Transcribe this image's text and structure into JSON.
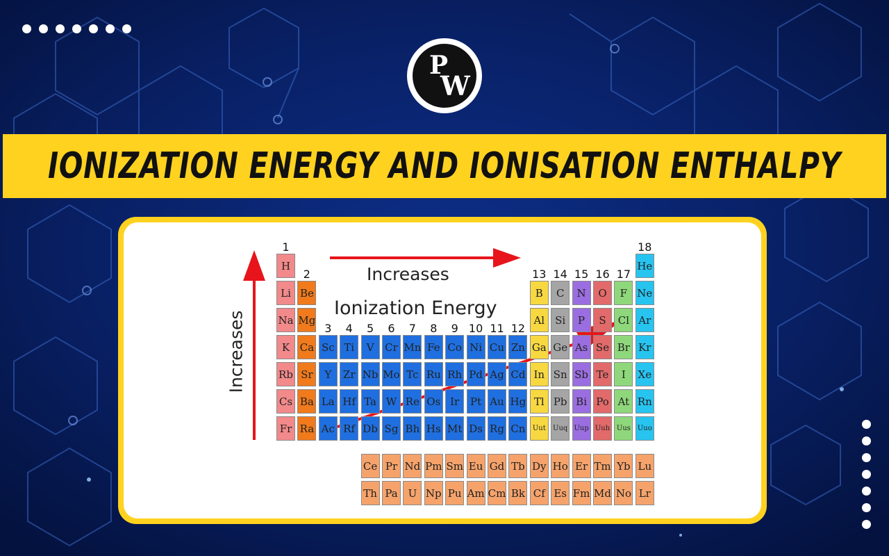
{
  "title": "IONIZATION ENERGY AND IONISATION ENTHALPY",
  "logo": {
    "icon": "pw-logo-icon",
    "letter_p": "P",
    "letter_w": "W"
  },
  "colors": {
    "background": "#06174a",
    "accent_yellow": "#ffd21f",
    "arrow_red": "#e8141b",
    "alkali": "#f2898a",
    "alkaline_earth": "#f07a1c",
    "transition": "#1f6fe0",
    "f_block": "#f5a36b",
    "p_yellow": "#f7d840",
    "p_gray": "#a5a5a5",
    "p_purple": "#9a6ee0",
    "p_red": "#e26a6a",
    "halogen": "#8fd77b",
    "noble": "#27c4f0"
  },
  "diagram": {
    "horizontal_label": "Increases",
    "vertical_label": "Increases",
    "center_label": "Ionization Energy",
    "group_numbers": [
      "1",
      "2",
      "3",
      "4",
      "5",
      "6",
      "7",
      "8",
      "9",
      "10",
      "11",
      "12",
      "13",
      "14",
      "15",
      "16",
      "17",
      "18"
    ],
    "elements": [
      {
        "s": "H",
        "r": 1,
        "c": 1,
        "t": "alkali"
      },
      {
        "s": "He",
        "r": 1,
        "c": 18,
        "t": "noble"
      },
      {
        "s": "Li",
        "r": 2,
        "c": 1,
        "t": "alkali"
      },
      {
        "s": "Be",
        "r": 2,
        "c": 2,
        "t": "alkaline_earth"
      },
      {
        "s": "B",
        "r": 2,
        "c": 13,
        "t": "p_yellow"
      },
      {
        "s": "C",
        "r": 2,
        "c": 14,
        "t": "p_gray"
      },
      {
        "s": "N",
        "r": 2,
        "c": 15,
        "t": "p_purple"
      },
      {
        "s": "O",
        "r": 2,
        "c": 16,
        "t": "p_red"
      },
      {
        "s": "F",
        "r": 2,
        "c": 17,
        "t": "halogen"
      },
      {
        "s": "Ne",
        "r": 2,
        "c": 18,
        "t": "noble"
      },
      {
        "s": "Na",
        "r": 3,
        "c": 1,
        "t": "alkali"
      },
      {
        "s": "Mg",
        "r": 3,
        "c": 2,
        "t": "alkaline_earth"
      },
      {
        "s": "Al",
        "r": 3,
        "c": 13,
        "t": "p_yellow"
      },
      {
        "s": "Si",
        "r": 3,
        "c": 14,
        "t": "p_gray"
      },
      {
        "s": "P",
        "r": 3,
        "c": 15,
        "t": "p_purple"
      },
      {
        "s": "S",
        "r": 3,
        "c": 16,
        "t": "p_red"
      },
      {
        "s": "Cl",
        "r": 3,
        "c": 17,
        "t": "halogen"
      },
      {
        "s": "Ar",
        "r": 3,
        "c": 18,
        "t": "noble"
      },
      {
        "s": "K",
        "r": 4,
        "c": 1,
        "t": "alkali"
      },
      {
        "s": "Ca",
        "r": 4,
        "c": 2,
        "t": "alkaline_earth"
      },
      {
        "s": "Sc",
        "r": 4,
        "c": 3,
        "t": "transition"
      },
      {
        "s": "Ti",
        "r": 4,
        "c": 4,
        "t": "transition"
      },
      {
        "s": "V",
        "r": 4,
        "c": 5,
        "t": "transition"
      },
      {
        "s": "Cr",
        "r": 4,
        "c": 6,
        "t": "transition"
      },
      {
        "s": "Mn",
        "r": 4,
        "c": 7,
        "t": "transition"
      },
      {
        "s": "Fe",
        "r": 4,
        "c": 8,
        "t": "transition"
      },
      {
        "s": "Co",
        "r": 4,
        "c": 9,
        "t": "transition"
      },
      {
        "s": "Ni",
        "r": 4,
        "c": 10,
        "t": "transition"
      },
      {
        "s": "Cu",
        "r": 4,
        "c": 11,
        "t": "transition"
      },
      {
        "s": "Zn",
        "r": 4,
        "c": 12,
        "t": "transition"
      },
      {
        "s": "Ga",
        "r": 4,
        "c": 13,
        "t": "p_yellow"
      },
      {
        "s": "Ge",
        "r": 4,
        "c": 14,
        "t": "p_gray"
      },
      {
        "s": "As",
        "r": 4,
        "c": 15,
        "t": "p_purple"
      },
      {
        "s": "Se",
        "r": 4,
        "c": 16,
        "t": "p_red"
      },
      {
        "s": "Br",
        "r": 4,
        "c": 17,
        "t": "halogen"
      },
      {
        "s": "Kr",
        "r": 4,
        "c": 18,
        "t": "noble"
      },
      {
        "s": "Rb",
        "r": 5,
        "c": 1,
        "t": "alkali"
      },
      {
        "s": "Sr",
        "r": 5,
        "c": 2,
        "t": "alkaline_earth"
      },
      {
        "s": "Y",
        "r": 5,
        "c": 3,
        "t": "transition"
      },
      {
        "s": "Zr",
        "r": 5,
        "c": 4,
        "t": "transition"
      },
      {
        "s": "Nb",
        "r": 5,
        "c": 5,
        "t": "transition"
      },
      {
        "s": "Mo",
        "r": 5,
        "c": 6,
        "t": "transition"
      },
      {
        "s": "Tc",
        "r": 5,
        "c": 7,
        "t": "transition"
      },
      {
        "s": "Ru",
        "r": 5,
        "c": 8,
        "t": "transition"
      },
      {
        "s": "Rh",
        "r": 5,
        "c": 9,
        "t": "transition"
      },
      {
        "s": "Pd",
        "r": 5,
        "c": 10,
        "t": "transition"
      },
      {
        "s": "Ag",
        "r": 5,
        "c": 11,
        "t": "transition"
      },
      {
        "s": "Cd",
        "r": 5,
        "c": 12,
        "t": "transition"
      },
      {
        "s": "In",
        "r": 5,
        "c": 13,
        "t": "p_yellow"
      },
      {
        "s": "Sn",
        "r": 5,
        "c": 14,
        "t": "p_gray"
      },
      {
        "s": "Sb",
        "r": 5,
        "c": 15,
        "t": "p_purple"
      },
      {
        "s": "Te",
        "r": 5,
        "c": 16,
        "t": "p_red"
      },
      {
        "s": "I",
        "r": 5,
        "c": 17,
        "t": "halogen"
      },
      {
        "s": "Xe",
        "r": 5,
        "c": 18,
        "t": "noble"
      },
      {
        "s": "Cs",
        "r": 6,
        "c": 1,
        "t": "alkali"
      },
      {
        "s": "Ba",
        "r": 6,
        "c": 2,
        "t": "alkaline_earth"
      },
      {
        "s": "La",
        "r": 6,
        "c": 3,
        "t": "transition"
      },
      {
        "s": "Hf",
        "r": 6,
        "c": 4,
        "t": "transition"
      },
      {
        "s": "Ta",
        "r": 6,
        "c": 5,
        "t": "transition"
      },
      {
        "s": "W",
        "r": 6,
        "c": 6,
        "t": "transition"
      },
      {
        "s": "Re",
        "r": 6,
        "c": 7,
        "t": "transition"
      },
      {
        "s": "Os",
        "r": 6,
        "c": 8,
        "t": "transition"
      },
      {
        "s": "Ir",
        "r": 6,
        "c": 9,
        "t": "transition"
      },
      {
        "s": "Pt",
        "r": 6,
        "c": 10,
        "t": "transition"
      },
      {
        "s": "Au",
        "r": 6,
        "c": 11,
        "t": "transition"
      },
      {
        "s": "Hg",
        "r": 6,
        "c": 12,
        "t": "transition"
      },
      {
        "s": "Tl",
        "r": 6,
        "c": 13,
        "t": "p_yellow"
      },
      {
        "s": "Pb",
        "r": 6,
        "c": 14,
        "t": "p_gray"
      },
      {
        "s": "Bi",
        "r": 6,
        "c": 15,
        "t": "p_purple"
      },
      {
        "s": "Po",
        "r": 6,
        "c": 16,
        "t": "p_red"
      },
      {
        "s": "At",
        "r": 6,
        "c": 17,
        "t": "halogen"
      },
      {
        "s": "Rn",
        "r": 6,
        "c": 18,
        "t": "noble"
      },
      {
        "s": "Fr",
        "r": 7,
        "c": 1,
        "t": "alkali"
      },
      {
        "s": "Ra",
        "r": 7,
        "c": 2,
        "t": "alkaline_earth"
      },
      {
        "s": "Ac",
        "r": 7,
        "c": 3,
        "t": "transition"
      },
      {
        "s": "Rf",
        "r": 7,
        "c": 4,
        "t": "transition"
      },
      {
        "s": "Db",
        "r": 7,
        "c": 5,
        "t": "transition"
      },
      {
        "s": "Sg",
        "r": 7,
        "c": 6,
        "t": "transition"
      },
      {
        "s": "Bh",
        "r": 7,
        "c": 7,
        "t": "transition"
      },
      {
        "s": "Hs",
        "r": 7,
        "c": 8,
        "t": "transition"
      },
      {
        "s": "Mt",
        "r": 7,
        "c": 9,
        "t": "transition"
      },
      {
        "s": "Ds",
        "r": 7,
        "c": 10,
        "t": "transition"
      },
      {
        "s": "Rg",
        "r": 7,
        "c": 11,
        "t": "transition"
      },
      {
        "s": "Cn",
        "r": 7,
        "c": 12,
        "t": "transition"
      },
      {
        "s": "Uut",
        "r": 7,
        "c": 13,
        "t": "p_yellow"
      },
      {
        "s": "Uuq",
        "r": 7,
        "c": 14,
        "t": "p_gray"
      },
      {
        "s": "Uup",
        "r": 7,
        "c": 15,
        "t": "p_purple"
      },
      {
        "s": "Uuh",
        "r": 7,
        "c": 16,
        "t": "p_red"
      },
      {
        "s": "Uus",
        "r": 7,
        "c": 17,
        "t": "halogen"
      },
      {
        "s": "Uuo",
        "r": 7,
        "c": 18,
        "t": "noble"
      },
      {
        "s": "Ce",
        "r": 8,
        "c": 5,
        "t": "f_block"
      },
      {
        "s": "Pr",
        "r": 8,
        "c": 6,
        "t": "f_block"
      },
      {
        "s": "Nd",
        "r": 8,
        "c": 7,
        "t": "f_block"
      },
      {
        "s": "Pm",
        "r": 8,
        "c": 8,
        "t": "f_block"
      },
      {
        "s": "Sm",
        "r": 8,
        "c": 9,
        "t": "f_block"
      },
      {
        "s": "Eu",
        "r": 8,
        "c": 10,
        "t": "f_block"
      },
      {
        "s": "Gd",
        "r": 8,
        "c": 11,
        "t": "f_block"
      },
      {
        "s": "Tb",
        "r": 8,
        "c": 12,
        "t": "f_block"
      },
      {
        "s": "Dy",
        "r": 8,
        "c": 13,
        "t": "f_block"
      },
      {
        "s": "Ho",
        "r": 8,
        "c": 14,
        "t": "f_block"
      },
      {
        "s": "Er",
        "r": 8,
        "c": 15,
        "t": "f_block"
      },
      {
        "s": "Tm",
        "r": 8,
        "c": 16,
        "t": "f_block"
      },
      {
        "s": "Yb",
        "r": 8,
        "c": 17,
        "t": "f_block"
      },
      {
        "s": "Lu",
        "r": 8,
        "c": 18,
        "t": "f_block"
      },
      {
        "s": "Th",
        "r": 9,
        "c": 5,
        "t": "f_block"
      },
      {
        "s": "Pa",
        "r": 9,
        "c": 6,
        "t": "f_block"
      },
      {
        "s": "U",
        "r": 9,
        "c": 7,
        "t": "f_block"
      },
      {
        "s": "Np",
        "r": 9,
        "c": 8,
        "t": "f_block"
      },
      {
        "s": "Pu",
        "r": 9,
        "c": 9,
        "t": "f_block"
      },
      {
        "s": "Am",
        "r": 9,
        "c": 10,
        "t": "f_block"
      },
      {
        "s": "Cm",
        "r": 9,
        "c": 11,
        "t": "f_block"
      },
      {
        "s": "Bk",
        "r": 9,
        "c": 12,
        "t": "f_block"
      },
      {
        "s": "Cf",
        "r": 9,
        "c": 13,
        "t": "f_block"
      },
      {
        "s": "Es",
        "r": 9,
        "c": 14,
        "t": "f_block"
      },
      {
        "s": "Fm",
        "r": 9,
        "c": 15,
        "t": "f_block"
      },
      {
        "s": "Md",
        "r": 9,
        "c": 16,
        "t": "f_block"
      },
      {
        "s": "No",
        "r": 9,
        "c": 17,
        "t": "f_block"
      },
      {
        "s": "Lr",
        "r": 9,
        "c": 18,
        "t": "f_block"
      }
    ]
  }
}
